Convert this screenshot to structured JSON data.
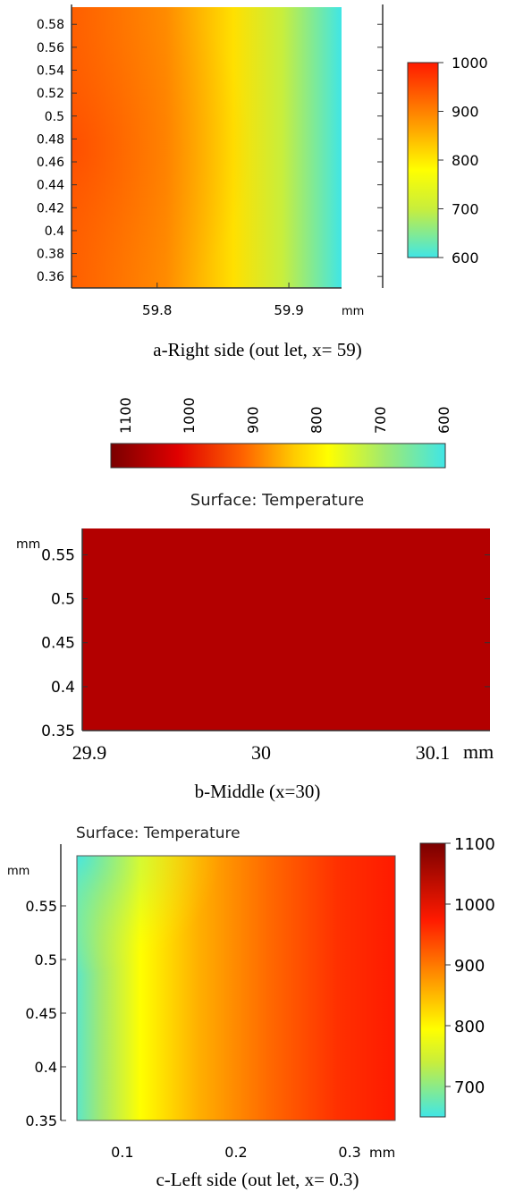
{
  "chart_data": [
    {
      "type": "heatmap",
      "panel": "a",
      "caption": "a-Right side (out let, x= 59)",
      "title": "",
      "x_ticks": [
        "59.8",
        "59.9"
      ],
      "x_tick_values": [
        59.8,
        59.9
      ],
      "xlim": [
        59.735,
        59.94
      ],
      "x_unit": "mm",
      "y_ticks": [
        "0.58",
        "0.56",
        "0.54",
        "0.52",
        "0.5",
        "0.48",
        "0.46",
        "0.44",
        "0.42",
        "0.4",
        "0.38",
        "0.36"
      ],
      "y_tick_values": [
        0.58,
        0.56,
        0.54,
        0.52,
        0.5,
        0.48,
        0.46,
        0.44,
        0.42,
        0.4,
        0.38,
        0.36
      ],
      "ylim": [
        0.35,
        0.595
      ],
      "colorbar": {
        "ticks": [
          "1000",
          "900",
          "800",
          "700",
          "600"
        ],
        "range": [
          600,
          1000
        ],
        "orientation": "vertical"
      },
      "field_description_values": {
        "left": 950,
        "right": 660
      }
    },
    {
      "type": "heatmap",
      "panel": "b",
      "caption": "b-Middle (x=30)",
      "title": "Surface: Temperature",
      "x_ticks": [
        "29.9",
        "30",
        "30.1"
      ],
      "x_tick_values": [
        29.9,
        30.0,
        30.1
      ],
      "xlim": [
        29.9,
        30.1
      ],
      "x_unit": "mm",
      "y_unit": "mm",
      "y_ticks": [
        "0.55",
        "0.5",
        "0.45",
        "0.4",
        "0.35"
      ],
      "y_tick_values": [
        0.55,
        0.5,
        0.45,
        0.4,
        0.35
      ],
      "ylim": [
        0.35,
        0.58
      ],
      "colorbar": {
        "ticks": [
          "1100",
          "1000",
          "900",
          "800",
          "700",
          "600"
        ],
        "range": [
          600,
          1100
        ],
        "orientation": "horizontal"
      },
      "uniform_value": 1100
    },
    {
      "type": "heatmap",
      "panel": "c",
      "caption": "c-Left side (out let, x= 0.3)",
      "title": "Surface: Temperature",
      "x_ticks": [
        "0.1",
        "0.2",
        "0.3"
      ],
      "x_tick_values": [
        0.1,
        0.2,
        0.3
      ],
      "xlim": [
        0.06,
        0.34
      ],
      "x_unit": "mm",
      "y_unit": "mm",
      "y_ticks": [
        "0.55",
        "0.5",
        "0.45",
        "0.4",
        "0.35"
      ],
      "y_tick_values": [
        0.55,
        0.5,
        0.45,
        0.4,
        0.35
      ],
      "ylim": [
        0.35,
        0.58
      ],
      "colorbar": {
        "ticks": [
          "1100",
          "1000",
          "900",
          "800",
          "700"
        ],
        "range": [
          650,
          1100
        ],
        "orientation": "vertical"
      }
    }
  ],
  "colors": {
    "colormap_stops": [
      "#40e6e6",
      "#7ce4a0",
      "#c8ee3c",
      "#ffff00",
      "#ffcc00",
      "#ff9900",
      "#ff6600",
      "#ff2200",
      "#d40000",
      "#7a0000"
    ],
    "uniform_fill": "#b30000"
  }
}
